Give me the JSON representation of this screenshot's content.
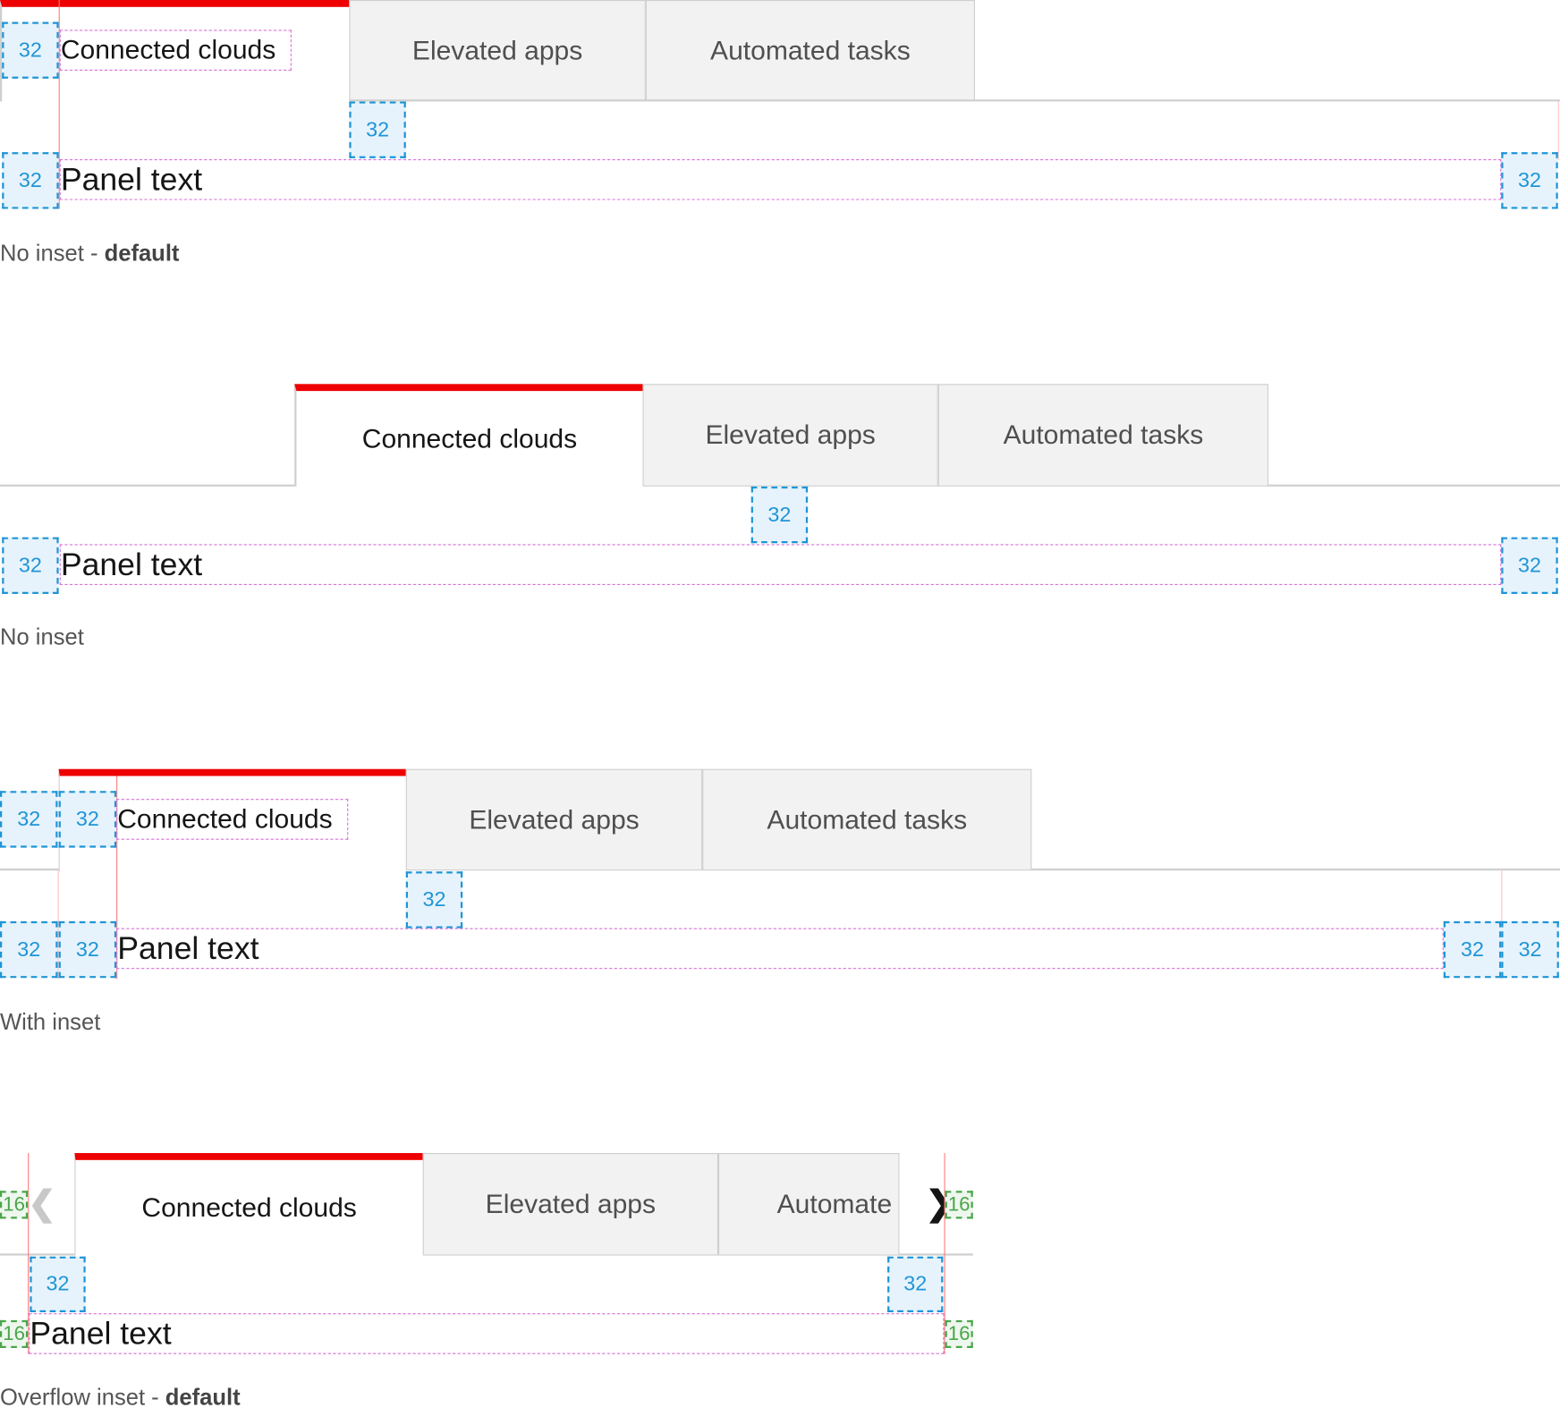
{
  "tabs": [
    "Connected clouds",
    "Elevated apps",
    "Automated tasks"
  ],
  "tabs_overflow": [
    "Connected clouds",
    "Elevated apps",
    "Automate"
  ],
  "panel_text": "Panel text",
  "spacers": {
    "lg": "32",
    "sm": "16"
  },
  "captions": [
    {
      "text": "No inset - ",
      "bold": "default"
    },
    {
      "text": "No inset",
      "bold": ""
    },
    {
      "text": "With inset",
      "bold": ""
    },
    {
      "text": "Overflow inset - ",
      "bold": "default"
    }
  ],
  "icons": {
    "scroll_left": "chevron-left-icon",
    "scroll_right": "chevron-right-icon"
  },
  "colors": {
    "accent": "#ee0000",
    "spacer": "#1f95d6",
    "spacer_small": "#4aa64a",
    "text_box": "#d873d8"
  }
}
